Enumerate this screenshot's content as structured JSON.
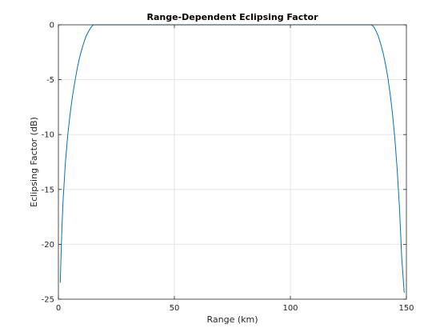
{
  "chart_data": {
    "type": "line",
    "title": "Range-Dependent Eclipsing Factor",
    "xlabel": "Range (km)",
    "ylabel": "Eclipsing Factor (dB)",
    "xlim": [
      0,
      150
    ],
    "ylim": [
      -25,
      0
    ],
    "xticks": [
      0,
      50,
      100,
      150
    ],
    "yticks": [
      0,
      -5,
      -10,
      -15,
      -20,
      -25
    ],
    "xtick_labels": [
      "0",
      "50",
      "100",
      "150"
    ],
    "ytick_labels": [
      "0",
      "-5",
      "-10",
      "-15",
      "-20",
      "-25"
    ],
    "grid": true,
    "line_color": "#0072BD",
    "series": [
      {
        "x": [
          0.8,
          1,
          1.5,
          2,
          3,
          4,
          5,
          6,
          7,
          8,
          9,
          10,
          11,
          12,
          13,
          14,
          15,
          20,
          40,
          60,
          80,
          100,
          120,
          135,
          136,
          137,
          138,
          139,
          140,
          141,
          142,
          143,
          144,
          145,
          146,
          147,
          148,
          148.5,
          149,
          149.2
        ],
        "y": [
          -23.5,
          -22.0,
          -18.6,
          -16.1,
          -12.6,
          -10.1,
          -8.2,
          -6.6,
          -5.3,
          -4.1,
          -3.1,
          -2.3,
          -1.6,
          -1.0,
          -0.6,
          -0.25,
          0,
          0,
          0,
          0,
          0,
          0,
          0,
          0,
          -0.2,
          -0.6,
          -1.1,
          -1.8,
          -2.6,
          -3.6,
          -4.8,
          -6.3,
          -8.1,
          -10.3,
          -13.1,
          -16.6,
          -21.3,
          -22.7,
          -24.3,
          -24.4
        ]
      }
    ]
  }
}
